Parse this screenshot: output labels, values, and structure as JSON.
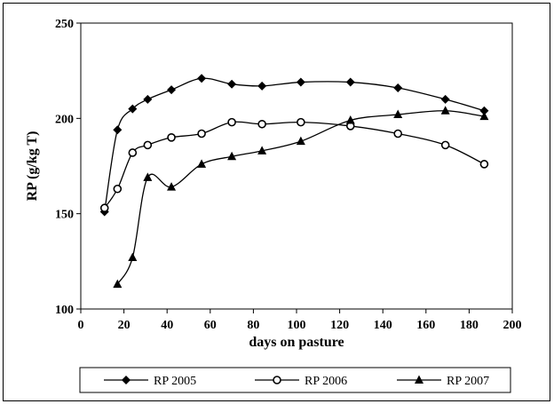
{
  "chart_data": {
    "type": "line",
    "title": "",
    "xlabel": "days on pasture",
    "ylabel": "RP (g/kg T)",
    "xlim": [
      0,
      200
    ],
    "ylim": [
      100,
      250
    ],
    "xticks": [
      0,
      20,
      40,
      60,
      80,
      100,
      120,
      140,
      160,
      180,
      200
    ],
    "yticks": [
      100,
      150,
      200,
      250
    ],
    "grid": false,
    "legend_position": "bottom",
    "series": [
      {
        "name": "RP 2005",
        "marker": "diamond",
        "color": "#000000",
        "x": [
          11,
          17,
          24,
          31,
          42,
          56,
          70,
          84,
          102,
          125,
          147,
          169,
          187
        ],
        "y": [
          151,
          194,
          205,
          210,
          215,
          221,
          218,
          217,
          219,
          219,
          216,
          210,
          204
        ]
      },
      {
        "name": "RP 2006",
        "marker": "circle-open",
        "color": "#000000",
        "x": [
          11,
          17,
          24,
          31,
          42,
          56,
          70,
          84,
          102,
          125,
          147,
          169,
          187
        ],
        "y": [
          153,
          163,
          182,
          186,
          190,
          192,
          198,
          197,
          198,
          196,
          192,
          186,
          176
        ]
      },
      {
        "name": "RP 2007",
        "marker": "triangle",
        "color": "#000000",
        "x": [
          17,
          24,
          31,
          42,
          56,
          70,
          84,
          102,
          125,
          147,
          169,
          187
        ],
        "y": [
          113,
          127,
          169,
          164,
          176,
          180,
          183,
          188,
          199,
          202,
          204,
          201
        ]
      }
    ]
  }
}
